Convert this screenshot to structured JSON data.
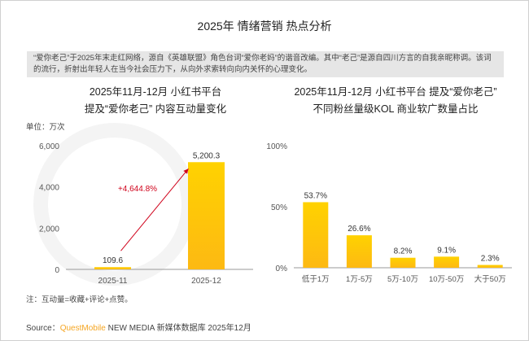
{
  "title": "2025年 情绪营销 热点分析",
  "description": "“爱你老己”于2025年末走红网络，源自《英雄联盟》角色台词“爱你老妈”的谐音改编。其中“老己”是源自四川方言的自我亲昵称调。该词的流行，折射出年轻人在当今社会压力下，从向外求索转向向内关怀的心理变化。",
  "watermark": "QUESTMOBILE",
  "note": "注：互动量=收藏+评论+点赞。",
  "source": {
    "prefix": "Source：",
    "brand": "QuestMobile",
    "rest": " NEW MEDIA 新媒体数据库 2025年12月"
  },
  "colors": {
    "bar": "#fdb913",
    "arrow": "#d0021b",
    "growth_text": "#d0021b"
  },
  "chart_data": [
    {
      "type": "bar",
      "title_line1": "2025年11月-12月 小红书平台",
      "title_line2": "提及“爱你老己” 内容互动量变化",
      "unit_label": "单位：万次",
      "categories": [
        "2025-11",
        "2025-12"
      ],
      "values": [
        109.6,
        5200.3
      ],
      "value_labels": [
        "109.6",
        "5,200.3"
      ],
      "ylim": [
        0,
        6000
      ],
      "yticks": [
        0,
        2000,
        4000,
        6000
      ],
      "ytick_labels": [
        "0",
        "2,000",
        "4,000",
        "6,000"
      ],
      "annotation": "+4,644.8%"
    },
    {
      "type": "bar",
      "title_line1": "2025年11月-12月 小红书平台 提及“爱你老己”",
      "title_line2": "不同粉丝量级KOL 商业软广数量占比",
      "categories": [
        "低于1万",
        "1万-5万",
        "5万-10万",
        "10万-50万",
        "大于50万"
      ],
      "values": [
        53.7,
        26.6,
        8.2,
        9.1,
        2.3
      ],
      "value_labels": [
        "53.7%",
        "26.6%",
        "8.2%",
        "9.1%",
        "2.3%"
      ],
      "ylim": [
        0,
        100
      ],
      "yticks": [
        0,
        50,
        100
      ],
      "ytick_labels": [
        "0%",
        "50%",
        "100%"
      ]
    }
  ]
}
